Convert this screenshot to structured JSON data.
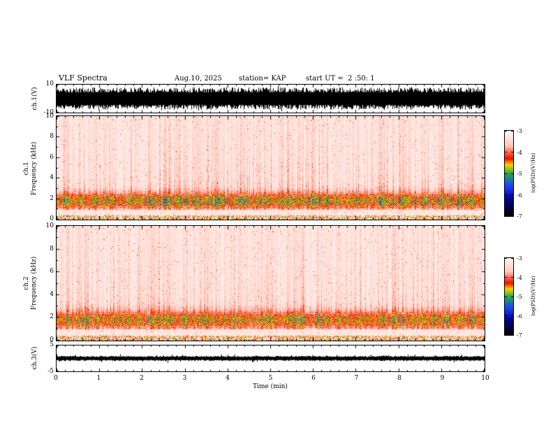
{
  "figure": {
    "title": "VLF Spectra",
    "date": "Aug.10, 2025",
    "station": "station= KAP",
    "start_ut": "start UT =  2 :50: 1"
  },
  "xaxis": {
    "label": "Time (min)",
    "min": 0,
    "max": 10,
    "ticks": [
      "0",
      "1",
      "2",
      "3",
      "4",
      "5",
      "6",
      "7",
      "8",
      "9",
      "10"
    ]
  },
  "colorbar": {
    "label": "log(PSD)(V²/Hz)",
    "ticks": [
      "-3",
      "-4",
      "-5",
      "-6",
      "-7"
    ],
    "range": [
      -3,
      -7
    ]
  },
  "panels": {
    "ch1_wave": {
      "ylabel": "ch.1(V)",
      "ymax_label": "10",
      "ymin_label": "-10",
      "ymin": -10,
      "ymax": 10
    },
    "ch1_spec": {
      "ylabel_line1": "ch.1",
      "ylabel_line2": "Frequency (kHz)",
      "yticks": [
        "0",
        "2",
        "4",
        "6",
        "8",
        "10"
      ],
      "ymin": 0,
      "ymax": 10
    },
    "ch2_spec": {
      "ylabel_line1": "ch.2",
      "ylabel_line2": "Frequency (kHz)",
      "yticks": [
        "0",
        "2",
        "4",
        "6",
        "8",
        "10"
      ],
      "ymin": 0,
      "ymax": 10
    },
    "ch3_wave": {
      "ylabel": "ch.3(V)",
      "ymax_label": "5",
      "ymin_label": "-5",
      "ymin": -5,
      "ymax": 5
    }
  },
  "colormap": {
    "stops": [
      [
        -7.0,
        "#000000"
      ],
      [
        -6.2,
        "#000090"
      ],
      [
        -5.6,
        "#2040ff"
      ],
      [
        -5.0,
        "#20b040"
      ],
      [
        -4.6,
        "#ffd000"
      ],
      [
        -4.3,
        "#ee1000"
      ],
      [
        -4.0,
        "#ff6a50"
      ],
      [
        -3.7,
        "#ffc8bc"
      ],
      [
        -3.0,
        "#fff8f6"
      ]
    ]
  },
  "chart_data": [
    {
      "id": "ch1_waveform",
      "type": "line",
      "panel": "ch.1(V)",
      "x_range_min": [
        0,
        10
      ],
      "y_range_V": [
        -10,
        10
      ],
      "signal": "dense broadband noise filling roughly ±8 V with peaks near ±10 V for the full 10 minutes",
      "typical_amplitude_V": 8,
      "color": "#000000",
      "seed": 11
    },
    {
      "id": "ch1_spectrogram",
      "type": "heatmap",
      "panel": "ch.1 Frequency (kHz)",
      "x_range_min": [
        0,
        10
      ],
      "y_range_kHz": [
        0,
        10
      ],
      "z_log_psd_range": [
        -7,
        -3
      ],
      "background_log_psd": -3.1,
      "streak_log_psd": -4.2,
      "streak_gain": 1.15,
      "band_center_kHz": 1.8,
      "band_width_kHz": 0.55,
      "band_log_psd": -4.6,
      "band_gain": 1.15,
      "quiet_gap_kHz": [
        0.4,
        0.95
      ],
      "features": "vertical red impulsive streaks at all times, strongest below 4 kHz; intense yellow-orange sferic band near 1-2.5 kHz with green specks; pale pink-white background; whitish gap near 0.5-0.9 kHz; red speckle strip at the very bottom",
      "seed": 23
    },
    {
      "id": "ch2_spectrogram",
      "type": "heatmap",
      "panel": "ch.2 Frequency (kHz)",
      "x_range_min": [
        0,
        10
      ],
      "y_range_kHz": [
        0,
        10
      ],
      "z_log_psd_range": [
        -7,
        -3
      ],
      "background_log_psd": -3.1,
      "streak_log_psd": -4.2,
      "streak_gain": 1.1,
      "band_center_kHz": 1.8,
      "band_width_kHz": 0.55,
      "band_log_psd": -4.6,
      "band_gain": 1.05,
      "quiet_gap_kHz": [
        0.4,
        0.95
      ],
      "features": "same structure as ch.1: red vertical streaks, yellow-orange band near 1-2.5 kHz, pale background",
      "seed": 57
    },
    {
      "id": "ch3_waveform",
      "type": "line",
      "panel": "ch.3(V)",
      "x_range_min": [
        0,
        10
      ],
      "y_range_V": [
        -5,
        5
      ],
      "signal": "thin continuous black noise band centered on 0 V, amplitude about ±1 V",
      "typical_amplitude_V": 1.0,
      "color": "#000000",
      "seed": 91
    }
  ]
}
